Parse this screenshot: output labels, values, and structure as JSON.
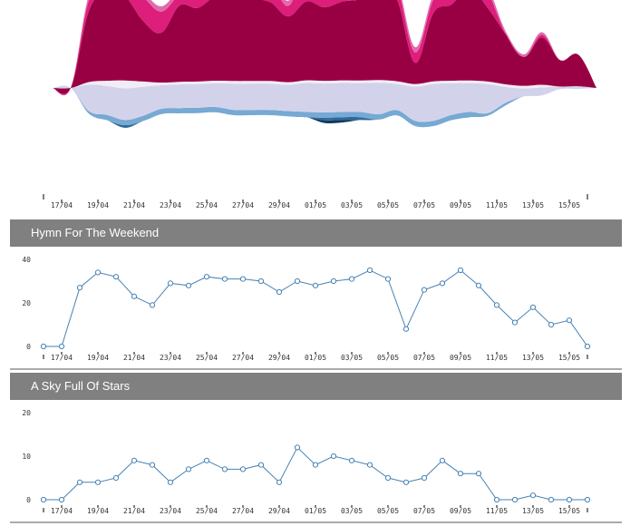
{
  "colors": {
    "stream": [
      "#990044",
      "#dd1e7a",
      "#e06aae",
      "#f1ecf6",
      "#d2d3ea",
      "#76a9d3",
      "#2f6a9c",
      "#0e3a5c"
    ],
    "line": "#4682b4",
    "header_bg": "#808080",
    "header_text": "#ffffff"
  },
  "x_tick_labels": [
    "17/04",
    "19/04",
    "21/04",
    "23/04",
    "25/04",
    "27/04",
    "29/04",
    "01/05",
    "03/05",
    "05/05",
    "07/05",
    "09/05",
    "11/05",
    "13/05",
    "15/05"
  ],
  "chart_data": [
    {
      "type": "area",
      "subtype": "streamgraph",
      "x": [
        "16/04",
        "17/04",
        "18/04",
        "19/04",
        "20/04",
        "21/04",
        "22/04",
        "23/04",
        "24/04",
        "25/04",
        "26/04",
        "27/04",
        "28/04",
        "29/04",
        "30/04",
        "01/05",
        "02/05",
        "03/05",
        "04/05",
        "05/05",
        "06/05",
        "07/05",
        "08/05",
        "09/05",
        "10/05",
        "11/05",
        "12/05",
        "13/05",
        "14/05",
        "15/05",
        "16/05"
      ],
      "series": [
        {
          "values": [
            0,
            0,
            27,
            34,
            32,
            23,
            19,
            29,
            28,
            32,
            31,
            31,
            30,
            25,
            30,
            28,
            30,
            31,
            35,
            31,
            8,
            26,
            29,
            35,
            28,
            19,
            11,
            18,
            10,
            12,
            0
          ]
        },
        {
          "values": [
            0,
            0,
            4,
            4,
            5,
            9,
            8,
            4,
            7,
            9,
            7,
            7,
            8,
            4,
            12,
            8,
            10,
            9,
            8,
            5,
            4,
            5,
            9,
            6,
            6,
            0,
            0,
            1,
            0,
            0,
            0
          ]
        },
        {
          "values": [
            0,
            0,
            2,
            2,
            2,
            2,
            2,
            2,
            2,
            2,
            2,
            2,
            2,
            2,
            2,
            2,
            2,
            2,
            2,
            2,
            2,
            2,
            2,
            2,
            2,
            1,
            1,
            1,
            0,
            0,
            0
          ]
        },
        {
          "values": [
            0,
            0,
            1,
            2,
            3,
            2,
            1,
            1,
            1,
            1,
            1,
            1,
            1,
            1,
            1,
            1,
            1,
            1,
            1,
            1,
            1,
            1,
            1,
            1,
            1,
            1,
            1,
            1,
            0,
            0,
            0
          ]
        },
        {
          "values": [
            0,
            0,
            10,
            11,
            12,
            11,
            9,
            9,
            9,
            9,
            10,
            10,
            10,
            10,
            11,
            11,
            11,
            11,
            12,
            10,
            13,
            14,
            12,
            11,
            11,
            6,
            3,
            3,
            1,
            1,
            0
          ]
        },
        {
          "values": [
            0,
            0,
            1,
            2,
            2,
            2,
            2,
            2,
            2,
            2,
            2,
            2,
            2,
            2,
            2,
            2,
            2,
            2,
            2,
            2,
            2,
            2,
            2,
            2,
            1,
            1,
            0,
            0,
            0,
            0,
            0
          ]
        },
        {
          "values": [
            0,
            0,
            0,
            0,
            1,
            0,
            0,
            0,
            0,
            0,
            0,
            0,
            0,
            0,
            0,
            1,
            1,
            1,
            0,
            0,
            0,
            0,
            0,
            0,
            0,
            0,
            0,
            0,
            0,
            0,
            0
          ]
        },
        {
          "values": [
            0,
            0,
            0,
            0,
            0,
            0,
            0,
            0,
            0,
            0,
            0,
            0,
            0,
            0,
            0,
            1,
            1,
            0,
            0,
            0,
            0,
            0,
            0,
            0,
            0,
            0,
            0,
            0,
            0,
            0,
            0
          ]
        }
      ]
    },
    {
      "type": "line",
      "title": "Hymn For The Weekend",
      "x": [
        "16/04",
        "17/04",
        "18/04",
        "19/04",
        "20/04",
        "21/04",
        "22/04",
        "23/04",
        "24/04",
        "25/04",
        "26/04",
        "27/04",
        "28/04",
        "29/04",
        "30/04",
        "01/05",
        "02/05",
        "03/05",
        "04/05",
        "05/05",
        "06/05",
        "07/05",
        "08/05",
        "09/05",
        "10/05",
        "11/05",
        "12/05",
        "13/05",
        "14/05",
        "15/05",
        "16/05"
      ],
      "values": [
        0,
        0,
        27,
        34,
        32,
        23,
        19,
        29,
        28,
        32,
        31,
        31,
        30,
        25,
        30,
        28,
        30,
        31,
        35,
        31,
        8,
        26,
        29,
        35,
        28,
        19,
        11,
        18,
        10,
        12,
        0
      ],
      "ylim": [
        0,
        40
      ],
      "yticks": [
        0,
        20,
        40
      ]
    },
    {
      "type": "line",
      "title": "A Sky Full Of Stars",
      "x": [
        "16/04",
        "17/04",
        "18/04",
        "19/04",
        "20/04",
        "21/04",
        "22/04",
        "23/04",
        "24/04",
        "25/04",
        "26/04",
        "27/04",
        "28/04",
        "29/04",
        "30/04",
        "01/05",
        "02/05",
        "03/05",
        "04/05",
        "05/05",
        "06/05",
        "07/05",
        "08/05",
        "09/05",
        "10/05",
        "11/05",
        "12/05",
        "13/05",
        "14/05",
        "15/05",
        "16/05"
      ],
      "values": [
        0,
        0,
        4,
        4,
        5,
        9,
        8,
        4,
        7,
        9,
        7,
        7,
        8,
        4,
        12,
        8,
        10,
        9,
        8,
        5,
        4,
        5,
        9,
        6,
        6,
        0,
        0,
        1,
        0,
        0,
        0
      ],
      "ylim": [
        0,
        20
      ],
      "yticks": [
        0,
        10,
        20
      ]
    }
  ]
}
